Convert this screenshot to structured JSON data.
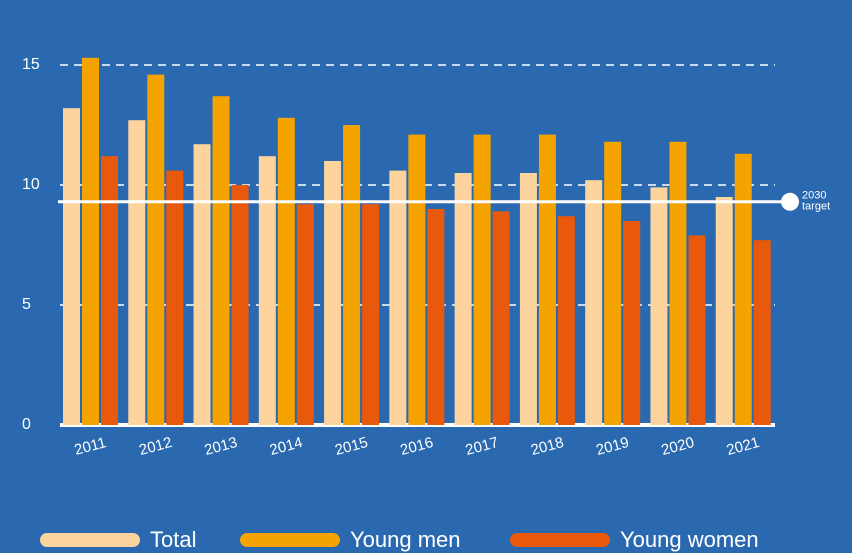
{
  "chart_data": {
    "type": "bar",
    "categories": [
      "2011",
      "2012",
      "2013",
      "2014",
      "2015",
      "2016",
      "2017",
      "2018",
      "2019",
      "2020",
      "2021"
    ],
    "series": [
      {
        "name": "Total",
        "color": "#fdd49e",
        "values": [
          13.2,
          12.7,
          11.7,
          11.2,
          11.0,
          10.6,
          10.5,
          10.5,
          10.2,
          9.9,
          9.5
        ]
      },
      {
        "name": "Young men",
        "color": "#f5a300",
        "values": [
          15.3,
          14.6,
          13.7,
          12.8,
          12.5,
          12.1,
          12.1,
          12.1,
          11.8,
          11.8,
          11.3
        ]
      },
      {
        "name": "Young women",
        "color": "#e8590c",
        "values": [
          11.2,
          10.6,
          10.0,
          9.2,
          9.2,
          9.0,
          8.9,
          8.7,
          8.5,
          7.9,
          7.7
        ]
      }
    ],
    "ylim": [
      0,
      15.5
    ],
    "yticks": [
      0,
      5,
      10,
      15
    ],
    "grid": true,
    "target": {
      "value": 9.3,
      "label_lines": [
        "2030",
        "target"
      ]
    }
  }
}
